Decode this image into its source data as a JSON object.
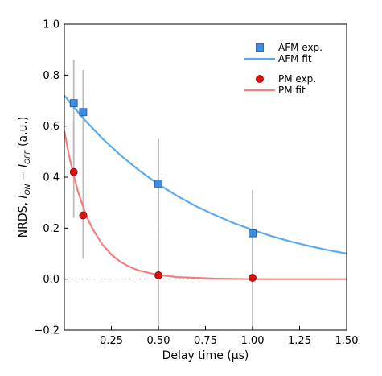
{
  "chart_data": {
    "type": "scatter",
    "xlabel": "Delay time (μs)",
    "ylabel": {
      "base": "NRDS, ",
      "i": "I",
      "on": "ON",
      "minus": " − ",
      "i2": "I",
      "off": "OFF",
      "units": " (a.u.)"
    },
    "xlim": [
      0.0,
      1.5
    ],
    "ylim": [
      -0.2,
      1.0
    ],
    "x_ticks": [
      0.25,
      0.5,
      0.75,
      1.0,
      1.25,
      1.5
    ],
    "x_tick_labels": [
      "0.25",
      "0.50",
      "0.75",
      "1.00",
      "1.25",
      "1.50"
    ],
    "y_ticks": [
      -0.2,
      0.0,
      0.2,
      0.4,
      0.6,
      0.8,
      1.0
    ],
    "y_tick_labels": [
      "−0.2",
      "0.0",
      "0.2",
      "0.4",
      "0.6",
      "0.8",
      "1.0"
    ],
    "grid": false,
    "legend_position": "top-right",
    "baseline": {
      "y": 0.0,
      "style": "dashed",
      "color": "#999999"
    },
    "series": [
      {
        "name": "AFM exp.",
        "kind": "points",
        "marker": "square",
        "color": "#3a8ee6",
        "edge": "#1f4fa0",
        "x": [
          0.05,
          0.1,
          0.5,
          1.0
        ],
        "y": [
          0.69,
          0.655,
          0.375,
          0.18
        ],
        "err_low": [
          0.47,
          0.42,
          0.17,
          0.01
        ],
        "err_high": [
          0.86,
          0.82,
          0.55,
          0.35
        ]
      },
      {
        "name": "AFM fit",
        "kind": "curve",
        "color": "#5aaaf0",
        "x": [
          0.0,
          0.1,
          0.2,
          0.3,
          0.4,
          0.5,
          0.6,
          0.7,
          0.8,
          0.9,
          1.0,
          1.1,
          1.2,
          1.3,
          1.4,
          1.5
        ],
        "y": [
          0.72,
          0.631,
          0.553,
          0.485,
          0.425,
          0.372,
          0.326,
          0.286,
          0.251,
          0.22,
          0.193,
          0.169,
          0.148,
          0.13,
          0.114,
          0.1
        ]
      },
      {
        "name": "PM exp.",
        "kind": "points",
        "marker": "circle",
        "color": "#dd1111",
        "edge": "#880000",
        "x": [
          0.05,
          0.1,
          0.5,
          1.0
        ],
        "y": [
          0.42,
          0.25,
          0.015,
          0.005
        ],
        "err_low": [
          0.24,
          0.08,
          -0.2,
          -0.2
        ],
        "err_high": [
          0.61,
          0.43,
          0.2,
          0.19
        ]
      },
      {
        "name": "PM fit",
        "kind": "curve",
        "color": "#f08080",
        "x": [
          0.0,
          0.025,
          0.05,
          0.075,
          0.1,
          0.125,
          0.15,
          0.2,
          0.25,
          0.3,
          0.35,
          0.4,
          0.5,
          0.6,
          0.8,
          1.0,
          1.5
        ],
        "y": [
          0.58,
          0.485,
          0.405,
          0.338,
          0.283,
          0.236,
          0.197,
          0.138,
          0.096,
          0.067,
          0.047,
          0.033,
          0.016,
          0.008,
          0.002,
          0.0,
          0.0
        ]
      }
    ]
  }
}
